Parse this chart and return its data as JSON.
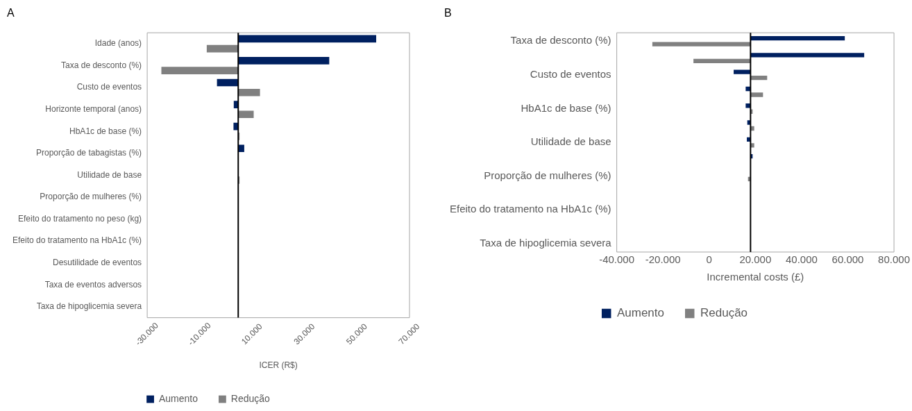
{
  "chart_data": [
    {
      "type": "bar",
      "title": "A",
      "orientation": "horizontal",
      "xlabel": "ICER (R$)",
      "categories": [
        "Idade (anos)",
        "Taxa de desconto (%)",
        "Custo de eventos",
        "Horizonte temporal (anos)",
        "HbA1c de base (%)",
        "Proporção de tabagistas (%)",
        "Utilidade de base",
        "Proporção de mulheres (%)",
        "Efeito do tratamento no peso (kg)",
        "Efeito do tratamento na HbA1c (%)",
        "Desutilidade de eventos",
        "Taxa de eventos adversos",
        "Taxa de hipoglicemia severa"
      ],
      "series": [
        {
          "name": "Aumento",
          "color": "#002060",
          "base": [
            4700,
            4700,
            4700,
            4700,
            4700,
            4700,
            null,
            null,
            null,
            null,
            null,
            null,
            null
          ],
          "values": [
            52600,
            34700,
            -8100,
            -1700,
            -1800,
            2300,
            null,
            null,
            null,
            null,
            null,
            null,
            null
          ]
        },
        {
          "name": "Redução",
          "color": "#808080",
          "base": [
            4700,
            4700,
            4700,
            4700,
            4700,
            null,
            4700,
            null,
            null,
            null,
            null,
            null,
            null
          ],
          "values": [
            -12000,
            -29300,
            8300,
            5900,
            500,
            null,
            500,
            null,
            null,
            null,
            null,
            null,
            null
          ]
        }
      ],
      "xlim": [
        -30000,
        70000
      ],
      "xticks": [
        {
          "value": -30000,
          "label": "-30.000"
        },
        {
          "value": -10000,
          "label": "-10.000"
        },
        {
          "value": 10000,
          "label": "10.000"
        },
        {
          "value": 30000,
          "label": "30.000"
        },
        {
          "value": 50000,
          "label": "50.000"
        },
        {
          "value": 70000,
          "label": "70.000"
        }
      ],
      "ref_lines": [
        {
          "axis": "x",
          "value": 4700,
          "color": "#000000"
        }
      ],
      "grid": false,
      "legend": "bottom"
    },
    {
      "type": "bar",
      "title": "B",
      "orientation": "horizontal",
      "xlabel": "Incremental costs (£)",
      "categories": [
        "Taxa de desconto (%)",
        null,
        "Custo de eventos",
        null,
        "HbA1c de base (%)",
        null,
        "Utilidade de base",
        null,
        "Proporção de mulheres (%)",
        null,
        "Efeito do tratamento na HbA1c (%)",
        null,
        "Taxa de hipoglicemia severa"
      ],
      "series": [
        {
          "name": "Aumento",
          "color": "#002060",
          "base": [
            17900,
            17900,
            17900,
            17900,
            17900,
            17900,
            17900,
            17900,
            null,
            null,
            null,
            null,
            null
          ],
          "values": [
            40800,
            49200,
            -7300,
            -2100,
            -2100,
            -1400,
            -1600,
            900,
            null,
            null,
            null,
            null,
            null
          ]
        },
        {
          "name": "Redução",
          "color": "#808080",
          "base": [
            17900,
            17900,
            17900,
            17900,
            17900,
            17900,
            17900,
            null,
            17900,
            null,
            null,
            null,
            null
          ],
          "values": [
            -42500,
            -24700,
            7200,
            5400,
            900,
            1600,
            1600,
            null,
            -1100,
            null,
            null,
            null,
            null
          ]
        }
      ],
      "xlim": [
        -40000,
        80000
      ],
      "xticks": [
        {
          "value": -40000,
          "label": "-40.000"
        },
        {
          "value": -20000,
          "label": "-20.000"
        },
        0,
        {
          "value": 20000,
          "label": "20.000"
        },
        {
          "value": 40000,
          "label": "40.000"
        },
        {
          "value": 60000,
          "label": "60.000"
        },
        {
          "value": 80000,
          "label": "80.000"
        }
      ],
      "ref_lines": [
        {
          "axis": "x",
          "value": 17900,
          "color": "#000000"
        }
      ],
      "grid": false,
      "legend": "bottom"
    }
  ]
}
